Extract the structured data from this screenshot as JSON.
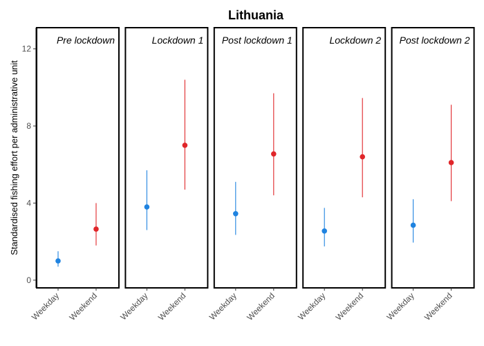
{
  "chart_data": {
    "type": "scatter",
    "title": "Lithuania",
    "ylabel": "Standardised fishing effort per administrative unit",
    "xlabel": "",
    "ylim": [
      -0.4,
      13.1
    ],
    "yticks": [
      0,
      4,
      8,
      12
    ],
    "categories": [
      "Weekday",
      "Weekend"
    ],
    "colors": {
      "Weekday": "#1f83e0",
      "Weekend": "#e0262a"
    },
    "panels": [
      {
        "label": "Pre lockdown",
        "points": [
          {
            "category": "Weekday",
            "y": 1.0,
            "low": 0.7,
            "high": 1.5
          },
          {
            "category": "Weekend",
            "y": 2.65,
            "low": 1.8,
            "high": 4.0
          }
        ]
      },
      {
        "label": "Lockdown 1",
        "points": [
          {
            "category": "Weekday",
            "y": 3.8,
            "low": 2.6,
            "high": 5.7
          },
          {
            "category": "Weekend",
            "y": 7.0,
            "low": 4.7,
            "high": 10.4
          }
        ]
      },
      {
        "label": "Post lockdown 1",
        "points": [
          {
            "category": "Weekday",
            "y": 3.45,
            "low": 2.35,
            "high": 5.1
          },
          {
            "category": "Weekend",
            "y": 6.55,
            "low": 4.4,
            "high": 9.7
          }
        ]
      },
      {
        "label": "Lockdown 2",
        "points": [
          {
            "category": "Weekday",
            "y": 2.55,
            "low": 1.75,
            "high": 3.75
          },
          {
            "category": "Weekend",
            "y": 6.4,
            "low": 4.3,
            "high": 9.45
          }
        ]
      },
      {
        "label": "Post lockdown 2",
        "points": [
          {
            "category": "Weekday",
            "y": 2.85,
            "low": 1.95,
            "high": 4.2
          },
          {
            "category": "Weekend",
            "y": 6.1,
            "low": 4.1,
            "high": 9.1
          }
        ]
      }
    ]
  }
}
